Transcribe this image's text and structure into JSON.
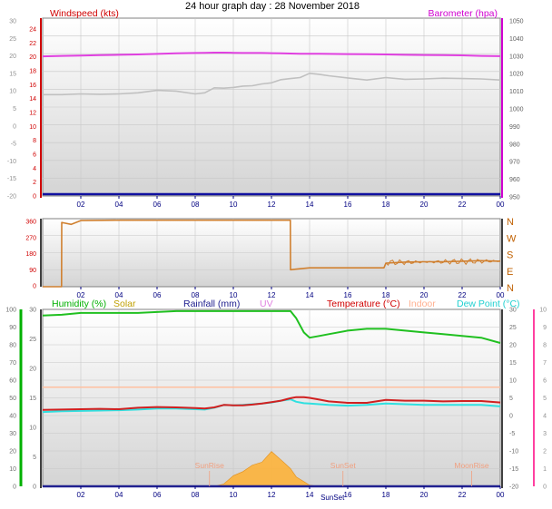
{
  "title": "24 hour graph day : 28 November 2018",
  "x_ticks": [
    "02",
    "04",
    "06",
    "08",
    "10",
    "12",
    "14",
    "16",
    "18",
    "20",
    "22",
    "00"
  ],
  "colors": {
    "windspeed": "#c0c0c0",
    "barometer": "#e040e0",
    "winddir": "#d08030",
    "humidity": "#20c020",
    "solar": "#ffb030",
    "rainfall": "#202090",
    "temperature": "#d02020",
    "indoor": "#ffc0a0",
    "dewpoint": "#30e0e0",
    "windspeed_axis": "#d00000",
    "baro_axis": "#d000d0",
    "humidity_axis": "#00b000",
    "temp_axis": "#d00000",
    "dew_axis": "#ff40a0",
    "xtick": "#000080"
  },
  "chart_data": [
    {
      "type": "line",
      "title": "",
      "x": [
        0,
        1,
        2,
        3,
        4,
        5,
        6,
        7,
        8,
        8.5,
        9,
        9.5,
        10,
        10.5,
        11,
        11.5,
        12,
        12.5,
        13,
        13.5,
        14,
        14.5,
        15,
        16,
        17,
        18,
        19,
        20,
        21,
        22,
        23,
        24
      ],
      "series": [
        {
          "name": "Windspeed (kts)",
          "axis": "left",
          "values": [
            8.5,
            8.5,
            8.7,
            8.6,
            8.7,
            9,
            9.7,
            9.5,
            8.7,
            9,
            10.4,
            10.3,
            10.5,
            10.9,
            11,
            11.5,
            11.8,
            12.7,
            13,
            13.3,
            14.5,
            14.2,
            13.8,
            13.2,
            12.6,
            13.3,
            12.8,
            12.9,
            13.1,
            13,
            12.9,
            12.6
          ]
        },
        {
          "name": "Barometer (hpa)",
          "axis": "right",
          "values": [
            1028.5,
            1028.8,
            1029,
            1029.2,
            1029.4,
            1029.6,
            1029.9,
            1030.2,
            1030.4,
            1030.5,
            1030.6,
            1030.6,
            1030.5,
            1030.4,
            1030.4,
            1030.4,
            1030.3,
            1030.2,
            1030.1,
            1030,
            1030,
            1030,
            1029.9,
            1029.8,
            1029.7,
            1029.6,
            1029.4,
            1029.3,
            1029.2,
            1029.1,
            1028.8,
            1028.6
          ]
        }
      ],
      "y_left": {
        "label": "Windspeed (kts)",
        "ticks": [
          "30",
          "25",
          "20",
          "15",
          "10",
          "5",
          "0",
          "-5",
          "-10",
          "-15",
          "-20"
        ]
      },
      "y_right": {
        "label": "Barometer (hpa)",
        "ticks": [
          "1050",
          "1040",
          "1030",
          "1020",
          "1010",
          "1000",
          "990",
          "980",
          "970",
          "960",
          "950"
        ]
      },
      "left_scale": {
        "ticks": [
          "24",
          "22",
          "20",
          "18",
          "16",
          "14",
          "12",
          "10",
          "8",
          "6",
          "4",
          "2",
          "0"
        ]
      },
      "xlim": [
        0,
        24
      ],
      "grid": true
    },
    {
      "type": "line",
      "title": "",
      "x": [
        0,
        0.99,
        1,
        1.1,
        1.5,
        2,
        4,
        6,
        8,
        10,
        12,
        12.99,
        13,
        13.5,
        14,
        15,
        16,
        17,
        17.9,
        18,
        19,
        20,
        21,
        22,
        23,
        24
      ],
      "series": [
        {
          "name": "Wind direction",
          "values": [
            0,
            0,
            340,
            338,
            330,
            350,
            352,
            352,
            352,
            352,
            352,
            352,
            90,
            95,
            100,
            100,
            100,
            100,
            100,
            125,
            130,
            132,
            132,
            135,
            138,
            135
          ]
        }
      ],
      "y_left": {
        "ticks": [
          "360",
          "270",
          "180",
          "90",
          "0"
        ]
      },
      "y_right": {
        "ticks": [
          "N",
          "W",
          "S",
          "E",
          "N"
        ]
      },
      "ylim": [
        0,
        360
      ],
      "xlim": [
        0,
        24
      ],
      "grid": true
    },
    {
      "type": "line",
      "title": "",
      "x": [
        0,
        1,
        2,
        3,
        4,
        5,
        6,
        7,
        8,
        8.5,
        9,
        9.5,
        10,
        10.5,
        11,
        11.5,
        12,
        12.5,
        13,
        13.3,
        13.7,
        14,
        14.5,
        15,
        16,
        17,
        18,
        19,
        20,
        21,
        22,
        23,
        24
      ],
      "series": [
        {
          "name": "Humidity (%)",
          "axis": "left",
          "values": [
            96.5,
            97,
            98,
            98,
            98,
            98,
            98.5,
            99,
            99,
            99,
            99,
            99,
            99,
            99,
            99,
            99,
            99,
            99,
            99,
            95,
            87,
            84,
            85,
            86,
            88,
            89,
            89,
            88,
            87,
            86,
            85,
            84,
            81
          ]
        },
        {
          "name": "Temperature (°C)",
          "axis": "right",
          "values": [
            1.6,
            1.7,
            1.8,
            1.9,
            1.8,
            2.2,
            2.4,
            2.3,
            2.1,
            2,
            2.3,
            3,
            2.9,
            2.9,
            3.1,
            3.4,
            3.8,
            4.2,
            4.9,
            5.2,
            5.2,
            5,
            4.5,
            4,
            3.6,
            3.6,
            4.4,
            4.2,
            4.2,
            4,
            4.1,
            4.1,
            3.7
          ]
        },
        {
          "name": "Dew Point (°C)",
          "axis": "right",
          "values": [
            1,
            1.2,
            1.3,
            1.4,
            1.5,
            1.7,
            2,
            2,
            1.8,
            1.7,
            2.2,
            3,
            2.9,
            3,
            3.2,
            3.4,
            3.7,
            4.2,
            4.6,
            3.9,
            3.5,
            3.4,
            3.2,
            3,
            2.8,
            3,
            3.4,
            3.2,
            3,
            3,
            3,
            3,
            2.6
          ]
        },
        {
          "name": "Indoor",
          "axis": "right",
          "values": [
            8,
            8,
            8,
            8,
            8,
            8,
            8,
            8,
            8,
            8,
            8,
            8,
            8,
            8,
            8,
            8,
            8,
            8,
            8,
            8,
            8,
            8,
            8,
            8,
            8,
            8,
            8,
            8,
            8,
            8,
            8,
            8,
            8
          ]
        },
        {
          "name": "Solar",
          "axis": "left",
          "values": [
            0,
            0,
            0,
            0,
            0,
            0,
            0,
            0,
            0,
            0,
            0,
            0.4,
            1.8,
            2.5,
            3.6,
            4.1,
            5.9,
            4.5,
            3,
            1.6,
            0.8,
            0.2,
            0,
            0,
            0,
            0,
            0,
            0,
            0,
            0,
            0,
            0,
            0
          ]
        },
        {
          "name": "Rainfall (mm)",
          "axis": "left",
          "values": [
            0,
            0,
            0,
            0,
            0,
            0,
            0,
            0,
            0,
            0,
            0,
            0,
            0,
            0,
            0,
            0,
            0,
            0,
            0,
            0,
            0,
            0,
            0,
            0,
            0,
            0,
            0,
            0,
            0,
            0,
            0,
            0,
            0
          ]
        }
      ],
      "labels": {
        "humidity": "Humidity (%)",
        "solar": "Solar",
        "rainfall": "Rainfall (mm)",
        "uv": "UV",
        "temperature": "Temperature (°C)",
        "indoor": "Indoor",
        "dewpoint": "Dew Point (°C)"
      },
      "annotations": {
        "sunrise": {
          "label": "SunRise",
          "x": 8.75
        },
        "sunset": {
          "label": "SunSet",
          "x": 15.75
        },
        "sunset_axis": "SunSet",
        "moonrise": {
          "label": "MoonRise",
          "x": 22.5
        }
      },
      "y_left": {
        "ticks": [
          "100",
          "90",
          "80",
          "70",
          "60",
          "50",
          "40",
          "30",
          "20",
          "10",
          "0"
        ]
      },
      "y_left_inner": {
        "ticks": [
          "30",
          "25",
          "20",
          "15",
          "10",
          "5",
          "0"
        ]
      },
      "y_right": {
        "ticks": [
          "30",
          "25",
          "20",
          "15",
          "10",
          "5",
          "0",
          "-5",
          "-10",
          "-15",
          "-20"
        ]
      },
      "y_right_outer": {
        "ticks": [
          "10",
          "9",
          "8",
          "7",
          "6",
          "5",
          "4",
          "3",
          "2",
          "1",
          "0"
        ]
      },
      "xlim": [
        0,
        24
      ],
      "grid": true
    }
  ]
}
